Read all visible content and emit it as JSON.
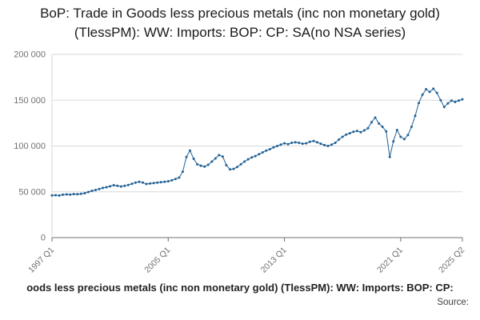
{
  "title": "BoP: Trade in Goods less precious metals (inc non monetary gold) (TlessPM): WW: Imports: BOP: CP: SA(no NSA series)",
  "footer": {
    "caption_visible": "oods less precious metals (inc non monetary gold) (TlessPM): WW: Imports: BOP: CP:",
    "source_label": "Source:"
  },
  "colors": {
    "line": "#206095",
    "grid": "#d9d9d9",
    "axis": "#707071",
    "tick_text": "#707071"
  },
  "chart_data": {
    "type": "line",
    "title": "BoP: Trade in Goods less precious metals (inc non monetary gold) (TlessPM): WW: Imports: BOP: CP: SA(no NSA series)",
    "frequency": "quarterly",
    "x_start": "1997 Q1",
    "x_end": "2025 Q2",
    "x_tick_labels": [
      "1997 Q1",
      "2005 Q1",
      "2013 Q1",
      "2021 Q1",
      "2025 Q2"
    ],
    "x_tick_quarter_index": [
      0,
      32,
      64,
      96,
      113
    ],
    "y_ticks": [
      0,
      50000,
      100000,
      150000,
      200000
    ],
    "y_tick_labels": [
      "0",
      "50 000",
      "100 000",
      "150 000",
      "200 000"
    ],
    "ylim": [
      0,
      200000
    ],
    "grid": true,
    "legend_position": "none",
    "line_color": "#206095",
    "marker": "dot",
    "values": [
      46000,
      46300,
      45900,
      46800,
      47200,
      47000,
      47500,
      47300,
      47800,
      48500,
      49800,
      51000,
      52000,
      53000,
      54200,
      55000,
      56000,
      57200,
      56500,
      55800,
      56500,
      57500,
      58800,
      60000,
      61000,
      60000,
      58500,
      59000,
      59500,
      60000,
      60500,
      61000,
      61500,
      62500,
      64000,
      65500,
      72000,
      88000,
      95000,
      86000,
      80000,
      78500,
      77500,
      79500,
      83000,
      86500,
      90000,
      88500,
      79000,
      74500,
      75000,
      77000,
      80000,
      83000,
      85500,
      87500,
      89000,
      91000,
      93000,
      95000,
      96500,
      98500,
      100000,
      101500,
      103000,
      102000,
      103500,
      104000,
      103500,
      102500,
      103000,
      104500,
      105500,
      104000,
      102500,
      101000,
      100000,
      101500,
      103500,
      107000,
      110000,
      112500,
      114000,
      115500,
      116500,
      115000,
      117000,
      119500,
      126000,
      131000,
      124500,
      121000,
      116000,
      88000,
      105000,
      117500,
      110000,
      107500,
      112000,
      121000,
      133000,
      147000,
      156000,
      162000,
      159000,
      162500,
      158000,
      150000,
      142500,
      146500,
      149500,
      148000,
      149500,
      151000
    ]
  }
}
